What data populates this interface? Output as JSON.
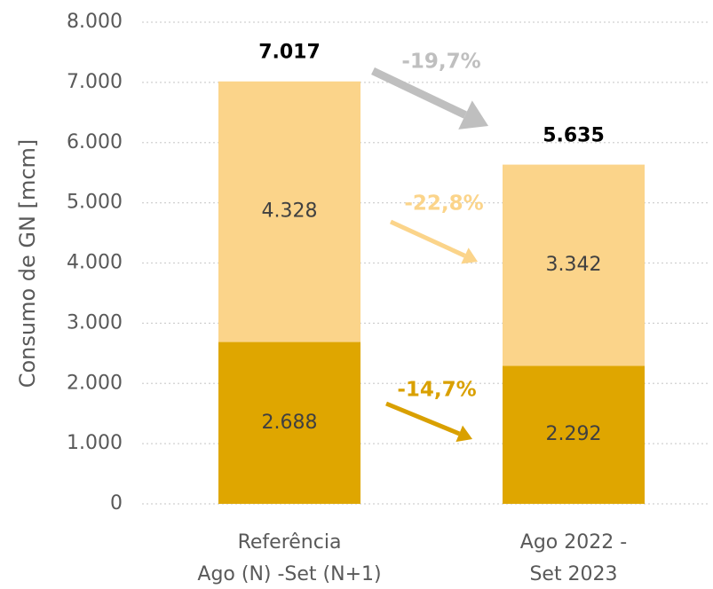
{
  "chart_data": {
    "type": "stacked_bar",
    "y_axis_label": "Consumo de GN [mcm]",
    "categories": [
      [
        "Referência",
        "Ago (N) -Set (N+1)"
      ],
      [
        "Ago 2022 -",
        "Set 2023"
      ]
    ],
    "series": [
      {
        "color": "#dfa600",
        "values": [
          2688,
          2292
        ],
        "value_labels": [
          "2.688",
          "2.292"
        ]
      },
      {
        "color": "#fbd48a",
        "values": [
          4328,
          3342
        ],
        "value_labels": [
          "4.328",
          "3.342"
        ]
      }
    ],
    "totals": {
      "values": [
        7017,
        5635
      ],
      "value_labels": [
        "7.017",
        "5.635"
      ]
    },
    "annotations": [
      {
        "text": "-19,7%",
        "color": "#bfbfbf"
      },
      {
        "text": "-22,8%",
        "color": "#fbd48a"
      },
      {
        "text": "-14,7%",
        "color": "#d9a000"
      }
    ],
    "ylim": [
      0,
      8000
    ],
    "yticks": [
      0,
      {
        "value": 1000,
        "label": "1.000"
      },
      {
        "value": 2000,
        "label": "2.000"
      },
      {
        "value": 3000,
        "label": "3.000"
      },
      {
        "value": 4000,
        "label": "4.000"
      },
      {
        "value": 5000,
        "label": "5.000"
      },
      {
        "value": 6000,
        "label": "6.000"
      },
      {
        "value": 7000,
        "label": "7.000"
      },
      {
        "value": 8000,
        "label": "8.000"
      }
    ],
    "grid": true
  }
}
